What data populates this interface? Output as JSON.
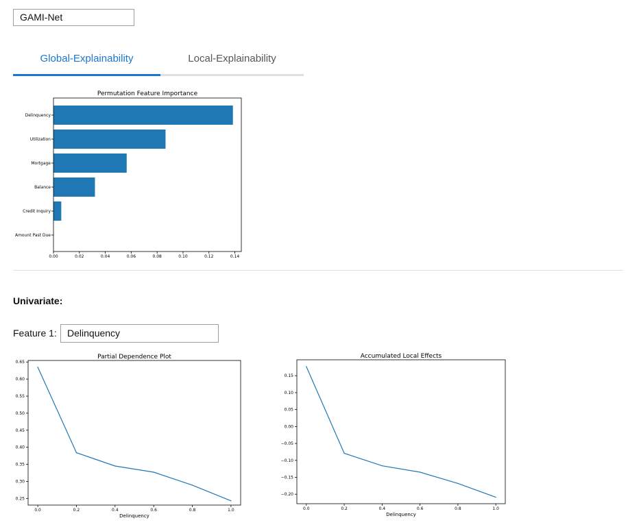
{
  "model_select": {
    "value": "GAMI-Net"
  },
  "tabs": [
    {
      "label": "Global-Explainability",
      "active": true
    },
    {
      "label": "Local-Explainability",
      "active": false
    }
  ],
  "colors": {
    "accent": "#1976d2",
    "bar": "#1f77b4",
    "line": "#1f77b4"
  },
  "univariate": {
    "title": "Univariate:",
    "feature_label": "Feature 1:",
    "feature_value": "Delinquency"
  },
  "chart_data": [
    {
      "type": "bar",
      "orientation": "horizontal",
      "title": "Permutation Feature Importance",
      "xlabel": "",
      "ylabel": "",
      "categories": [
        "Delinquency",
        "Utilization",
        "Mortgage",
        "Balance",
        "Credit Inquiry",
        "Amount Past Due"
      ],
      "values": [
        0.1385,
        0.0865,
        0.0565,
        0.032,
        0.006,
        0.0
      ],
      "xlim": [
        0,
        0.145
      ],
      "xticks": [
        "0.00",
        "0.02",
        "0.04",
        "0.06",
        "0.08",
        "0.10",
        "0.12",
        "0.14"
      ],
      "grid": false
    },
    {
      "type": "line",
      "title": "Partial Dependence Plot",
      "xlabel": "Delinquency",
      "ylabel": "",
      "x": [
        0.0,
        0.2,
        0.4,
        0.6,
        0.8,
        1.0
      ],
      "y": [
        0.635,
        0.384,
        0.345,
        0.327,
        0.289,
        0.243
      ],
      "xlim": [
        -0.05,
        1.05
      ],
      "ylim": [
        0.2305,
        0.6545
      ],
      "xticks": [
        "0.0",
        "0.2",
        "0.4",
        "0.6",
        "0.8",
        "1.0"
      ],
      "yticks": [
        "0.25",
        "0.30",
        "0.35",
        "0.40",
        "0.45",
        "0.50",
        "0.55",
        "0.60",
        "0.65"
      ],
      "grid": false
    },
    {
      "type": "line",
      "title": "Accumulated Local Effects",
      "xlabel": "Delinquency",
      "ylabel": "",
      "x": [
        0.0,
        0.2,
        0.4,
        0.6,
        0.8,
        1.0
      ],
      "y": [
        0.177,
        -0.079,
        -0.116,
        -0.135,
        -0.168,
        -0.209
      ],
      "xlim": [
        -0.05,
        1.05
      ],
      "ylim": [
        -0.228,
        0.197
      ],
      "xticks": [
        "0.0",
        "0.2",
        "0.4",
        "0.6",
        "0.8",
        "1.0"
      ],
      "yticks": [
        "−0.20",
        "−0.15",
        "−0.10",
        "−0.05",
        "0.00",
        "0.05",
        "0.10",
        "0.15"
      ],
      "grid": false
    }
  ]
}
